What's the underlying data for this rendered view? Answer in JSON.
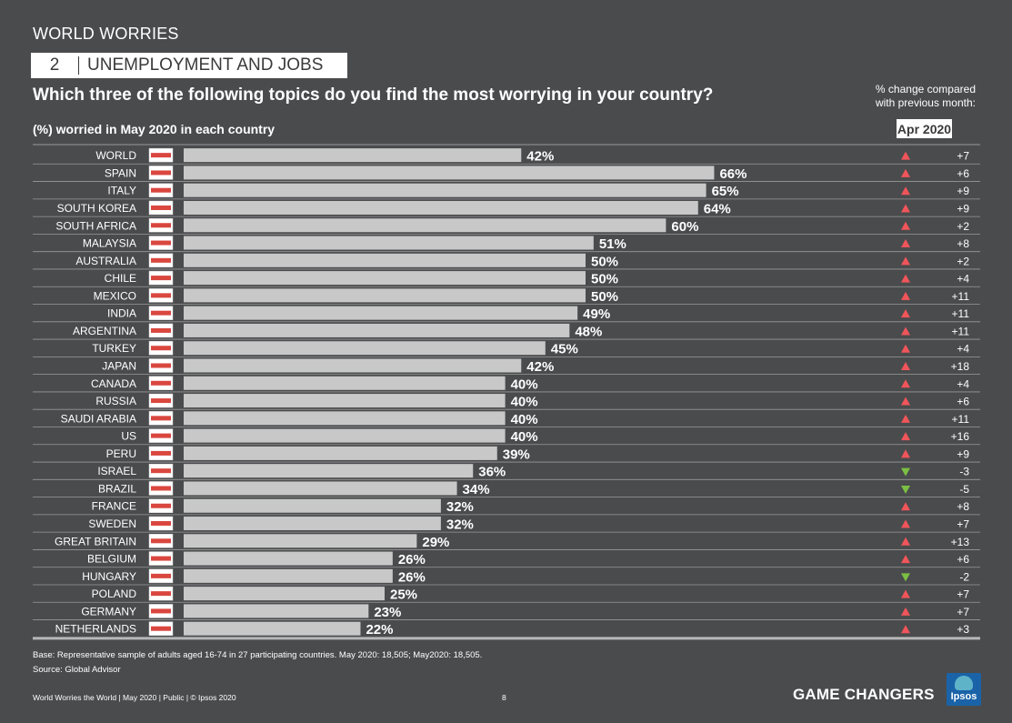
{
  "header": {
    "top_title": "WORLD WORRIES",
    "section_number": "2",
    "section_title": "UNEMPLOYMENT AND JOBS",
    "question": "Which three of the following topics do you find the most worrying in your country?",
    "change_note_line1": "% change compared",
    "change_note_line2": "with previous month:",
    "apr_label": "Apr 2020"
  },
  "chart_data": {
    "type": "bar",
    "orientation": "horizontal",
    "title": "Which three of the following topics do you find the most worrying in your country?",
    "subtitle": "(%) worried in May 2020 in each country",
    "categories": [
      "WORLD",
      "SPAIN",
      "ITALY",
      "SOUTH KOREA",
      "SOUTH AFRICA",
      "MALAYSIA",
      "AUSTRALIA",
      "CHILE",
      "MEXICO",
      "INDIA",
      "ARGENTINA",
      "TURKEY",
      "JAPAN",
      "CANADA",
      "RUSSIA",
      "SAUDI ARABIA",
      "US",
      "PERU",
      "ISRAEL",
      "BRAZIL",
      "FRANCE",
      "SWEDEN",
      "GREAT BRITAIN",
      "BELGIUM",
      "HUNGARY",
      "POLAND",
      "GERMANY",
      "NETHERLANDS"
    ],
    "values": [
      42,
      66,
      65,
      64,
      60,
      51,
      50,
      50,
      50,
      49,
      48,
      45,
      42,
      40,
      40,
      40,
      40,
      39,
      36,
      34,
      32,
      32,
      29,
      26,
      26,
      25,
      23,
      22
    ],
    "value_labels": [
      "42%",
      "66%",
      "65%",
      "64%",
      "60%",
      "51%",
      "50%",
      "50%",
      "50%",
      "49%",
      "48%",
      "45%",
      "42%",
      "40%",
      "40%",
      "40%",
      "40%",
      "39%",
      "36%",
      "34%",
      "32%",
      "32%",
      "29%",
      "26%",
      "26%",
      "25%",
      "23%",
      "22%"
    ],
    "change_labels": [
      "+7",
      "+6",
      "+9",
      "+9",
      "+2",
      "+8",
      "+2",
      "+4",
      "+11",
      "+11",
      "+11",
      "+4",
      "+18",
      "+4",
      "+6",
      "+11",
      "+16",
      "+9",
      "-3",
      "-5",
      "+8",
      "+7",
      "+13",
      "+6",
      "-2",
      "+7",
      "+7",
      "+3"
    ],
    "change_values": [
      7,
      6,
      9,
      9,
      2,
      8,
      2,
      4,
      11,
      11,
      11,
      4,
      18,
      4,
      6,
      11,
      16,
      9,
      -3,
      -5,
      8,
      7,
      13,
      6,
      -2,
      7,
      7,
      3
    ],
    "xlim": [
      0,
      100
    ],
    "colors": {
      "bar": "#c8c8c8",
      "up": "#f0555a",
      "down": "#7bbf44",
      "rule": "#9a9a9a",
      "label": "#ffffff"
    }
  },
  "footer": {
    "base_note": "Base: Representative sample of adults aged 16-74 in 27 participating countries. May 2020: 18,505; May2020: 18,505.",
    "source_note": "Source: Global Advisor",
    "left_text": "World Worries the World | May 2020 | Public | © Ipsos 2020",
    "page_number": "8",
    "brand_text": "GAME CHANGERS",
    "logo_text": "Ipsos"
  }
}
